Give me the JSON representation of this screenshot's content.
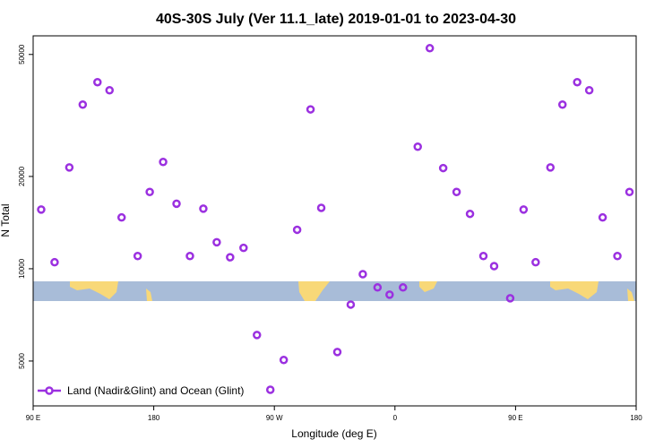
{
  "chart_data": {
    "type": "scatter",
    "title": "40S-30S July (Ver 11.1_late)   2019-01-01 to 2023-04-30",
    "x_label": "Longitude (deg E)",
    "y_label": "N Total",
    "log_y": true,
    "legend_position": "lower left",
    "xlim": [
      90,
      540
    ],
    "ylim": [
      3570,
      57500
    ],
    "xticks": [
      {
        "value": 90,
        "label": "90 E"
      },
      180,
      {
        "value": 270,
        "label": "90 W"
      },
      {
        "value": 360,
        "label": "0"
      },
      {
        "value": 450,
        "label": "90 E"
      },
      {
        "value": 540,
        "label": "180"
      }
    ],
    "yticks": [
      5000,
      10000,
      20000,
      50000
    ],
    "series": [
      {
        "name": "Land (Nadir&Glint) and Ocean (Glint)",
        "color": "#9b30e0",
        "x": [
          96,
          106,
          117,
          127,
          138,
          147,
          156,
          168,
          177,
          187,
          197,
          207,
          217,
          227,
          237,
          247,
          257,
          267,
          277,
          287,
          297,
          305,
          317,
          327,
          336,
          347,
          356,
          366,
          377,
          386,
          396,
          406,
          416,
          426,
          434,
          446,
          456,
          465,
          476,
          485,
          496,
          505,
          515,
          526,
          535
        ],
        "values": [
          15600,
          10500,
          21400,
          34300,
          40600,
          38200,
          14700,
          11000,
          17800,
          22300,
          16300,
          11000,
          15700,
          12200,
          10900,
          11700,
          6080,
          4030,
          5040,
          13400,
          33100,
          15800,
          5350,
          7640,
          9600,
          8690,
          8230,
          8690,
          25000,
          52400,
          21300,
          17800,
          15100,
          11000,
          10200,
          8010,
          15600,
          10500,
          21400,
          34300,
          40600,
          38200,
          14700,
          11000,
          17800
        ]
      }
    ]
  }
}
